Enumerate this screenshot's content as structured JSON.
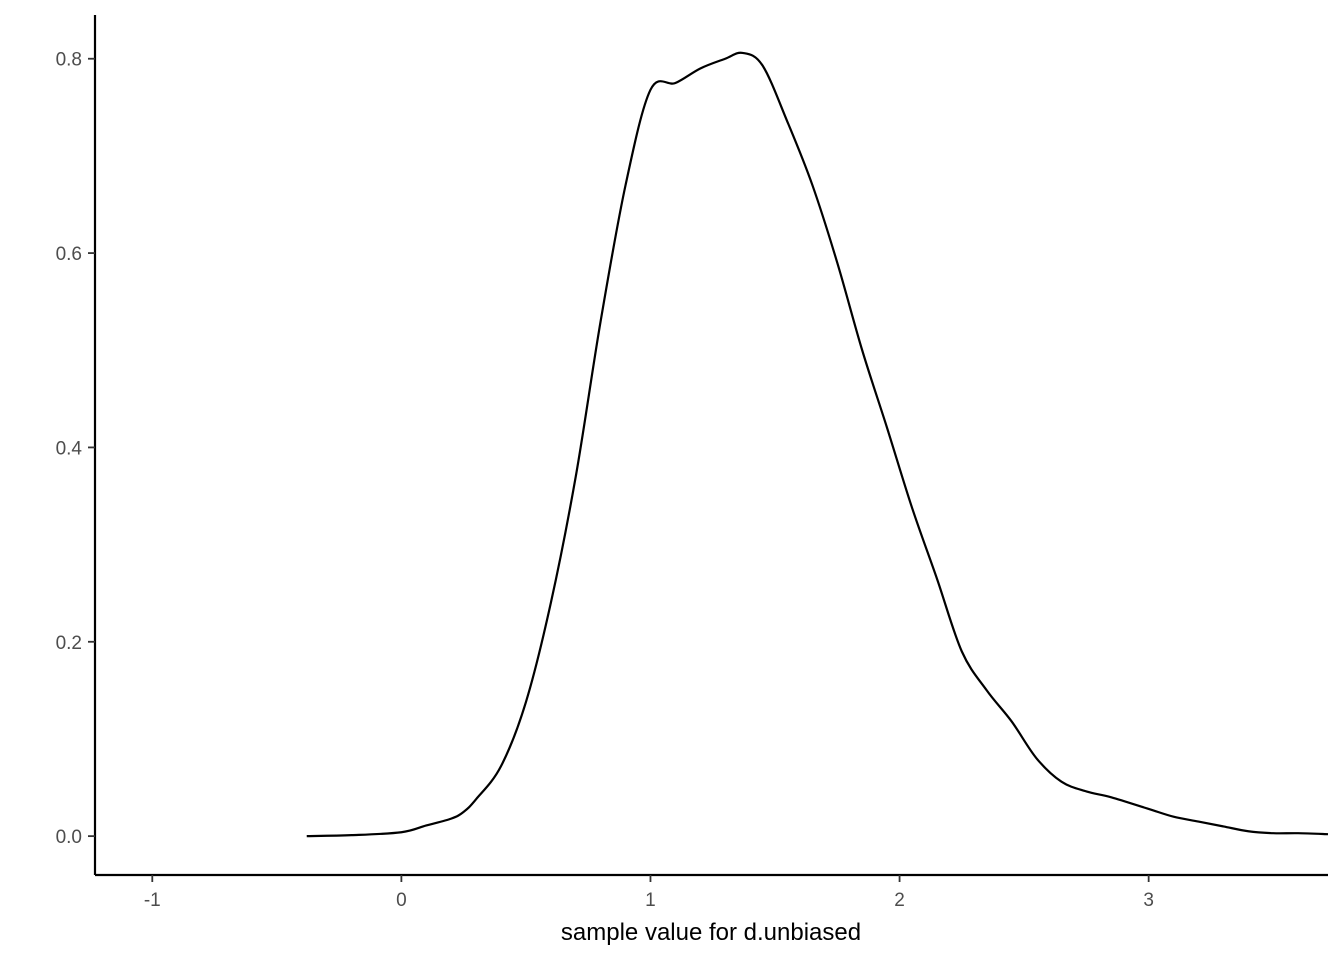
{
  "chart_data": {
    "type": "line",
    "title": "",
    "xlabel": "sample value for d.unbiased",
    "ylabel": "",
    "xlim": [
      -1.23,
      3.72
    ],
    "ylim": [
      -0.04,
      0.845
    ],
    "x_ticks": [
      -1,
      0,
      1,
      2,
      3
    ],
    "x_tick_labels": [
      "-1",
      "0",
      "1",
      "2",
      "3"
    ],
    "y_ticks": [
      0.0,
      0.2,
      0.4,
      0.6,
      0.8
    ],
    "y_tick_labels": [
      "0.0",
      "0.2",
      "0.4",
      "0.6",
      "0.8"
    ],
    "grid": false,
    "series": [
      {
        "color": "#000000",
        "x": [
          -0.38,
          -0.2,
          0.0,
          0.1,
          0.2,
          0.25,
          0.3,
          0.4,
          0.5,
          0.6,
          0.7,
          0.8,
          0.9,
          1.0,
          1.1,
          1.2,
          1.3,
          1.37,
          1.45,
          1.55,
          1.65,
          1.75,
          1.85,
          1.95,
          2.05,
          2.15,
          2.25,
          2.35,
          2.45,
          2.55,
          2.65,
          2.75,
          2.85,
          3.0,
          3.1,
          3.2,
          3.3,
          3.4,
          3.5,
          3.6,
          3.72
        ],
        "y": [
          0.0,
          0.001,
          0.004,
          0.011,
          0.018,
          0.025,
          0.038,
          0.072,
          0.138,
          0.24,
          0.37,
          0.53,
          0.67,
          0.768,
          0.775,
          0.79,
          0.8,
          0.806,
          0.793,
          0.735,
          0.67,
          0.59,
          0.5,
          0.42,
          0.338,
          0.265,
          0.19,
          0.15,
          0.118,
          0.08,
          0.056,
          0.046,
          0.04,
          0.028,
          0.02,
          0.015,
          0.01,
          0.005,
          0.003,
          0.003,
          0.002
        ]
      }
    ]
  }
}
